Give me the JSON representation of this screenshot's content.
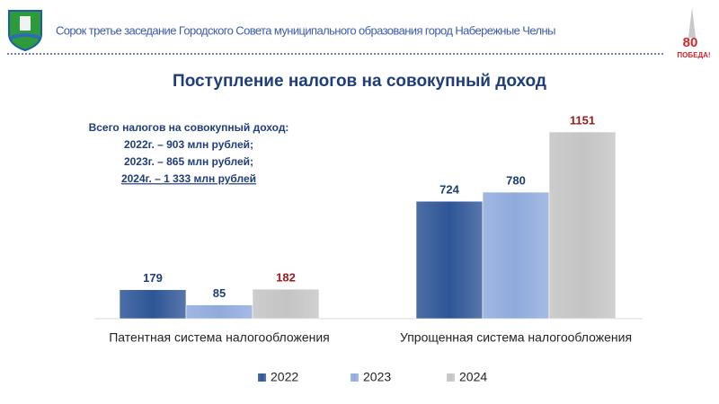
{
  "header": {
    "text": "Сорок третье заседание Городского Совета муниципального образования город Набережные Челны",
    "badge": [
      "80",
      "ПОБЕДА!"
    ]
  },
  "chart_data": {
    "type": "bar",
    "title": "Поступление налогов на совокупный доход",
    "annotation": [
      "Всего налогов на совокупный доход:",
      "2022г. – 903 млн рублей;",
      "2023г. – 865 млн рублей;",
      "2024г. – 1 333 млн рублей"
    ],
    "categories": [
      "Патентная система налогообложения",
      "Упрощенная система налогообложения"
    ],
    "series": [
      {
        "name": "2022",
        "color": "#2e5597",
        "label_color": "#1f3d7a",
        "values": [
          179,
          724
        ]
      },
      {
        "name": "2023",
        "color": "#8faadc",
        "label_color": "#1f3d7a",
        "values": [
          85,
          780
        ]
      },
      {
        "name": "2024",
        "color": "#c4c4c4",
        "label_color": "#9b1b1b",
        "values": [
          182,
          1151
        ]
      }
    ],
    "legend": "bottom"
  }
}
